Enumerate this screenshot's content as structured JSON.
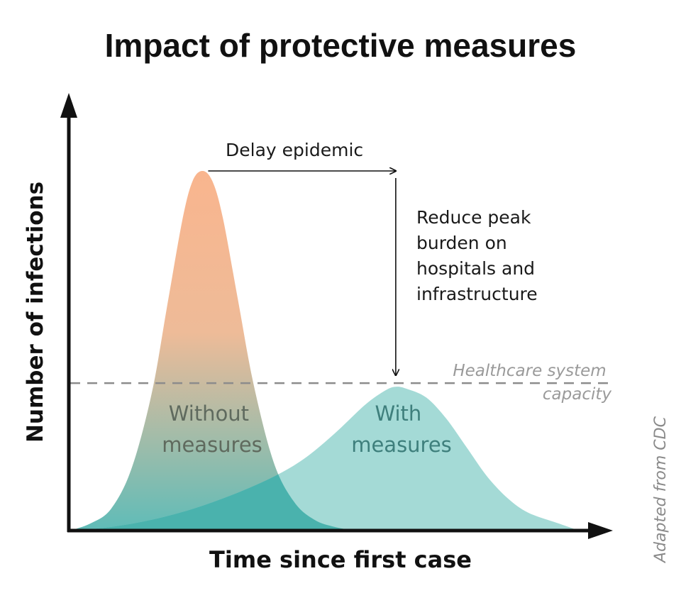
{
  "chart_data": {
    "type": "area",
    "title": "Impact of protective measures",
    "xlabel": "Time since first case",
    "ylabel": "Number of infections",
    "xlim": [
      0,
      100
    ],
    "ylim": [
      0,
      100
    ],
    "grid": false,
    "legend": "none",
    "series": [
      {
        "name": "Without measures",
        "label_lines": [
          "Without",
          "measures"
        ],
        "color": "#f9b58e",
        "color_bottom": "#5fbcb8",
        "peak": {
          "x": 26,
          "y": 100
        },
        "x": [
          0,
          4,
          8,
          12,
          16,
          19,
          22,
          24,
          26,
          28,
          30,
          33,
          36,
          40,
          44,
          48,
          52,
          56
        ],
        "y": [
          0,
          2,
          6,
          17,
          38,
          62,
          86,
          97,
          100,
          97,
          87,
          64,
          41,
          19,
          8,
          3,
          1,
          0
        ]
      },
      {
        "name": "With measures",
        "label_lines": [
          "With",
          "measures"
        ],
        "color": "#9fd8d4",
        "text_color": "#3e7f7c",
        "peak": {
          "x": 64,
          "y": 40
        },
        "x": [
          0,
          8,
          16,
          24,
          32,
          40,
          46,
          52,
          58,
          62,
          64,
          66,
          70,
          74,
          78,
          82,
          86,
          90,
          96,
          100
        ],
        "y": [
          0,
          1,
          3,
          6,
          10,
          15,
          20,
          27,
          35,
          39,
          40,
          39.5,
          37,
          31,
          23,
          15,
          9,
          5,
          2,
          0
        ]
      }
    ],
    "overlap_color": "#4ab2ad",
    "capacity": {
      "y": 41,
      "label_lines": [
        "Healthcare system",
        "capacity"
      ],
      "color": "#8c8c8c"
    },
    "annotations": {
      "delay": "Delay epidemic",
      "reduce_lines": [
        "Reduce peak",
        "burden on",
        "hospitals and",
        "infrastructure"
      ]
    },
    "credit": "Adapted from CDC"
  }
}
